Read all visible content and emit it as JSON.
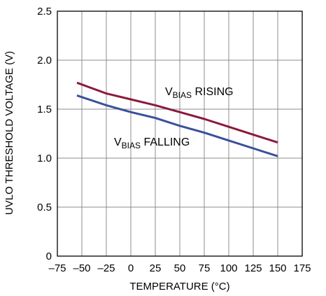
{
  "chart_data": {
    "type": "line",
    "title": "",
    "xlabel": "TEMPERATURE (°C)",
    "ylabel": "UVLO THRESHOLD VOLTAGE (V)",
    "xlim": [
      -75,
      175
    ],
    "ylim": [
      0,
      2.5
    ],
    "xticks": [
      -75,
      -50,
      -25,
      0,
      25,
      50,
      75,
      100,
      125,
      150,
      175
    ],
    "xtick_labels": [
      "–75",
      "–50",
      "–25",
      "0",
      "25",
      "50",
      "75",
      "100",
      "125",
      "150",
      "175"
    ],
    "yticks": [
      0,
      0.5,
      1.0,
      1.5,
      2.0,
      2.5
    ],
    "ytick_labels": [
      "0",
      "0.5",
      "1.0",
      "1.5",
      "2.0",
      "2.5"
    ],
    "grid": true,
    "series": [
      {
        "name_main": "V",
        "name_sub": "BIAS",
        "name_rest": " RISING",
        "color": "#8b1a3c",
        "x": [
          -55,
          -25,
          0,
          25,
          50,
          75,
          100,
          125,
          150
        ],
        "y": [
          1.77,
          1.66,
          1.6,
          1.54,
          1.47,
          1.4,
          1.32,
          1.24,
          1.16
        ]
      },
      {
        "name_main": "V",
        "name_sub": "BIAS",
        "name_rest": " FALLING",
        "color": "#3a4f9c",
        "x": [
          -55,
          -25,
          0,
          25,
          50,
          75,
          100,
          125,
          150
        ],
        "y": [
          1.64,
          1.54,
          1.47,
          1.41,
          1.33,
          1.26,
          1.18,
          1.1,
          1.02
        ]
      }
    ]
  }
}
